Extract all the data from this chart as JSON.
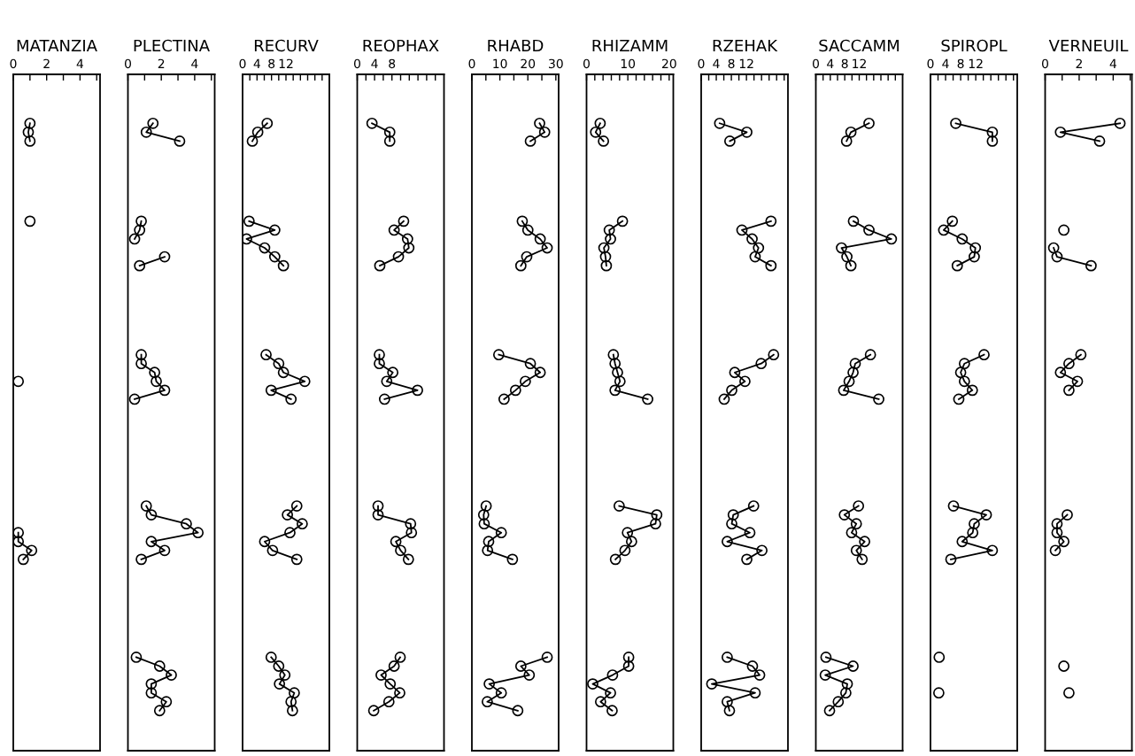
{
  "chart_data": [
    {
      "type": "line",
      "orientation": "horizontal",
      "title": "MATANZIA",
      "marker": "circle",
      "line_style": "solid",
      "tick_labels": "x",
      "xlim": [
        0,
        5.2
      ],
      "xticks": [
        0,
        {
          "value": 1,
          "label": null
        },
        2,
        {
          "value": 3,
          "label": null
        },
        4,
        {
          "value": 5,
          "label": null
        }
      ],
      "categories": [
        null,
        null,
        null,
        null,
        null,
        null,
        null,
        null,
        null,
        null,
        null,
        null,
        null,
        null,
        null,
        null,
        null,
        null,
        null,
        null,
        null,
        null,
        null,
        null,
        null,
        null,
        null,
        null,
        null,
        null,
        null,
        null,
        null,
        null,
        null,
        null,
        null,
        null,
        null,
        null,
        null,
        null,
        null,
        null,
        null,
        null,
        null,
        null,
        null,
        null,
        null,
        null,
        null,
        null,
        null,
        null,
        null,
        null,
        null,
        null,
        null,
        null,
        null,
        null,
        null,
        null,
        null,
        null,
        null,
        null,
        null,
        null,
        null,
        null,
        null,
        null
      ],
      "series": [
        {
          "color": "#000000",
          "values": [
            null,
            null,
            null,
            null,
            null,
            1.0,
            0.9,
            1.0,
            null,
            null,
            null,
            null,
            null,
            null,
            null,
            null,
            1.0,
            null,
            null,
            null,
            null,
            null,
            null,
            null,
            null,
            null,
            null,
            null,
            null,
            null,
            null,
            null,
            null,
            null,
            0.3,
            null,
            null,
            null,
            null,
            null,
            null,
            null,
            null,
            null,
            null,
            null,
            null,
            null,
            null,
            null,
            null,
            0.3,
            0.3,
            1.1,
            0.6,
            null,
            null,
            null,
            null,
            null,
            null,
            null,
            null,
            null,
            null,
            null,
            null,
            null,
            null,
            null,
            null,
            null,
            null,
            null,
            null,
            null
          ]
        }
      ]
    },
    {
      "type": "line",
      "orientation": "horizontal",
      "title": "PLECTINA",
      "marker": "circle",
      "line_style": "solid",
      "tick_labels": "x",
      "xlim": [
        0,
        5.2
      ],
      "xticks": [
        0,
        {
          "value": 1,
          "label": null
        },
        2,
        {
          "value": 3,
          "label": null
        },
        4,
        {
          "value": 5,
          "label": null
        }
      ],
      "categories": [
        null,
        null,
        null,
        null,
        null,
        null,
        null,
        null,
        null,
        null,
        null,
        null,
        null,
        null,
        null,
        null,
        null,
        null,
        null,
        null,
        null,
        null,
        null,
        null,
        null,
        null,
        null,
        null,
        null,
        null,
        null,
        null,
        null,
        null,
        null,
        null,
        null,
        null,
        null,
        null,
        null,
        null,
        null,
        null,
        null,
        null,
        null,
        null,
        null,
        null,
        null,
        null,
        null,
        null,
        null,
        null,
        null,
        null,
        null,
        null,
        null,
        null,
        null,
        null,
        null,
        null,
        null,
        null,
        null,
        null,
        null,
        null,
        null,
        null,
        null,
        null
      ],
      "series": [
        {
          "color": "#000000",
          "values": [
            null,
            null,
            null,
            null,
            null,
            1.5,
            1.1,
            3.1,
            null,
            null,
            null,
            null,
            null,
            null,
            null,
            null,
            0.8,
            0.7,
            0.4,
            null,
            2.2,
            0.7,
            null,
            null,
            null,
            null,
            null,
            null,
            null,
            null,
            null,
            0.8,
            0.8,
            1.6,
            1.7,
            2.2,
            0.4,
            null,
            null,
            null,
            null,
            null,
            null,
            null,
            null,
            null,
            null,
            null,
            1.1,
            1.4,
            3.5,
            4.2,
            1.4,
            2.2,
            0.8,
            null,
            null,
            null,
            null,
            null,
            null,
            null,
            null,
            null,
            null,
            0.5,
            1.9,
            2.6,
            1.4,
            1.4,
            2.3,
            1.9,
            null,
            null,
            null,
            null
          ]
        }
      ]
    },
    {
      "type": "line",
      "orientation": "horizontal",
      "title": "RECURV",
      "marker": "circle",
      "line_style": "solid",
      "tick_labels": "x",
      "xlim": [
        0,
        24
      ],
      "xticks": [
        0,
        {
          "value": 2,
          "label": null
        },
        4,
        {
          "value": 6,
          "label": null
        },
        8,
        {
          "value": 10,
          "label": null
        },
        12,
        {
          "value": 14,
          "label": null
        },
        {
          "value": 16,
          "label": null
        },
        {
          "value": 18,
          "label": null
        },
        {
          "value": 20,
          "label": null
        },
        {
          "value": 22,
          "label": null
        }
      ],
      "categories": [
        null,
        null,
        null,
        null,
        null,
        null,
        null,
        null,
        null,
        null,
        null,
        null,
        null,
        null,
        null,
        null,
        null,
        null,
        null,
        null,
        null,
        null,
        null,
        null,
        null,
        null,
        null,
        null,
        null,
        null,
        null,
        null,
        null,
        null,
        null,
        null,
        null,
        null,
        null,
        null,
        null,
        null,
        null,
        null,
        null,
        null,
        null,
        null,
        null,
        null,
        null,
        null,
        null,
        null,
        null,
        null,
        null,
        null,
        null,
        null,
        null,
        null,
        null,
        null,
        null,
        null,
        null,
        null,
        null,
        null,
        null,
        null,
        null,
        null,
        null,
        null
      ],
      "series": [
        {
          "color": "#000000",
          "values": [
            null,
            null,
            null,
            null,
            null,
            6.8,
            4.2,
            2.7,
            null,
            null,
            null,
            null,
            null,
            null,
            null,
            null,
            1.8,
            8.9,
            1.1,
            6.1,
            8.9,
            11.3,
            null,
            null,
            null,
            null,
            null,
            null,
            null,
            null,
            null,
            6.5,
            10.0,
            11.3,
            17.2,
            7.9,
            13.4,
            null,
            null,
            null,
            null,
            null,
            null,
            null,
            null,
            null,
            null,
            null,
            15.0,
            12.4,
            16.5,
            13.1,
            6.1,
            8.3,
            15.0,
            null,
            null,
            null,
            null,
            null,
            null,
            null,
            null,
            null,
            null,
            7.9,
            10.0,
            11.7,
            10.2,
            14.3,
            13.4,
            13.8,
            null,
            null,
            null,
            null
          ]
        }
      ]
    },
    {
      "type": "line",
      "orientation": "horizontal",
      "title": "REOPHAX",
      "marker": "circle",
      "line_style": "solid",
      "tick_labels": "x",
      "xlim": [
        0,
        20
      ],
      "xticks": [
        0,
        {
          "value": 2,
          "label": null
        },
        4,
        {
          "value": 6,
          "label": null
        },
        8,
        {
          "value": 10,
          "label": null
        },
        {
          "value": 12,
          "label": null
        },
        {
          "value": 14,
          "label": null
        },
        {
          "value": 16,
          "label": null
        },
        {
          "value": 18,
          "label": null
        }
      ],
      "categories": [
        null,
        null,
        null,
        null,
        null,
        null,
        null,
        null,
        null,
        null,
        null,
        null,
        null,
        null,
        null,
        null,
        null,
        null,
        null,
        null,
        null,
        null,
        null,
        null,
        null,
        null,
        null,
        null,
        null,
        null,
        null,
        null,
        null,
        null,
        null,
        null,
        null,
        null,
        null,
        null,
        null,
        null,
        null,
        null,
        null,
        null,
        null,
        null,
        null,
        null,
        null,
        null,
        null,
        null,
        null,
        null,
        null,
        null,
        null,
        null,
        null,
        null,
        null,
        null,
        null,
        null,
        null,
        null,
        null,
        null,
        null,
        null,
        null,
        null,
        null,
        null
      ],
      "series": [
        {
          "color": "#000000",
          "values": [
            null,
            null,
            null,
            null,
            null,
            3.4,
            7.5,
            7.5,
            null,
            null,
            null,
            null,
            null,
            null,
            null,
            null,
            10.7,
            8.5,
            11.6,
            11.9,
            9.5,
            5.2,
            null,
            null,
            null,
            null,
            null,
            null,
            null,
            null,
            null,
            5.1,
            5.1,
            8.2,
            6.8,
            13.9,
            6.3,
            null,
            null,
            null,
            null,
            null,
            null,
            null,
            null,
            null,
            null,
            null,
            4.8,
            4.8,
            12.3,
            12.5,
            8.9,
            10.0,
            11.8,
            null,
            null,
            null,
            null,
            null,
            null,
            null,
            null,
            null,
            null,
            9.9,
            8.5,
            5.5,
            7.6,
            9.8,
            7.3,
            3.8,
            null,
            null,
            null,
            null
          ]
        }
      ]
    },
    {
      "type": "line",
      "orientation": "horizontal",
      "title": "RHABD",
      "marker": "circle",
      "line_style": "solid",
      "tick_labels": "x",
      "xlim": [
        0,
        31
      ],
      "xticks": [
        0,
        {
          "value": 5,
          "label": null
        },
        10,
        {
          "value": 15,
          "label": null
        },
        20,
        {
          "value": 25,
          "label": null
        },
        30
      ],
      "categories": [
        null,
        null,
        null,
        null,
        null,
        null,
        null,
        null,
        null,
        null,
        null,
        null,
        null,
        null,
        null,
        null,
        null,
        null,
        null,
        null,
        null,
        null,
        null,
        null,
        null,
        null,
        null,
        null,
        null,
        null,
        null,
        null,
        null,
        null,
        null,
        null,
        null,
        null,
        null,
        null,
        null,
        null,
        null,
        null,
        null,
        null,
        null,
        null,
        null,
        null,
        null,
        null,
        null,
        null,
        null,
        null,
        null,
        null,
        null,
        null,
        null,
        null,
        null,
        null,
        null,
        null,
        null,
        null,
        null,
        null,
        null,
        null,
        null,
        null,
        null,
        null
      ],
      "series": [
        {
          "color": "#000000",
          "values": [
            null,
            null,
            null,
            null,
            null,
            24.2,
            26.0,
            20.9,
            null,
            null,
            null,
            null,
            null,
            null,
            null,
            null,
            18.0,
            20.0,
            24.4,
            26.9,
            19.6,
            17.5,
            null,
            null,
            null,
            null,
            null,
            null,
            null,
            null,
            null,
            9.6,
            20.9,
            24.4,
            19.1,
            15.6,
            11.5,
            null,
            null,
            null,
            null,
            null,
            null,
            null,
            null,
            null,
            null,
            null,
            5.1,
            4.2,
            4.4,
            10.5,
            6.0,
            5.6,
            14.5,
            null,
            null,
            null,
            null,
            null,
            null,
            null,
            null,
            null,
            null,
            26.9,
            17.5,
            20.5,
            6.2,
            10.5,
            5.5,
            16.4,
            null,
            null,
            null,
            null
          ]
        }
      ]
    },
    {
      "type": "line",
      "orientation": "horizontal",
      "title": "RHIZAMM",
      "marker": "circle",
      "line_style": "solid",
      "tick_labels": "x",
      "xlim": [
        0,
        21
      ],
      "xticks": [
        0,
        {
          "value": 2,
          "label": null
        },
        {
          "value": 4,
          "label": null
        },
        {
          "value": 6,
          "label": null
        },
        {
          "value": 8,
          "label": null
        },
        10,
        {
          "value": 12,
          "label": null
        },
        {
          "value": 14,
          "label": null
        },
        {
          "value": 16,
          "label": null
        },
        {
          "value": 18,
          "label": null
        },
        20
      ],
      "categories": [
        null,
        null,
        null,
        null,
        null,
        null,
        null,
        null,
        null,
        null,
        null,
        null,
        null,
        null,
        null,
        null,
        null,
        null,
        null,
        null,
        null,
        null,
        null,
        null,
        null,
        null,
        null,
        null,
        null,
        null,
        null,
        null,
        null,
        null,
        null,
        null,
        null,
        null,
        null,
        null,
        null,
        null,
        null,
        null,
        null,
        null,
        null,
        null,
        null,
        null,
        null,
        null,
        null,
        null,
        null,
        null,
        null,
        null,
        null,
        null,
        null,
        null,
        null,
        null,
        null,
        null,
        null,
        null,
        null,
        null,
        null,
        null,
        null,
        null,
        null,
        null
      ],
      "series": [
        {
          "color": "#000000",
          "values": [
            null,
            null,
            null,
            null,
            null,
            3.3,
            2.2,
            4.1,
            null,
            null,
            null,
            null,
            null,
            null,
            null,
            null,
            8.7,
            5.5,
            5.8,
            4.2,
            4.6,
            4.8,
            null,
            null,
            null,
            null,
            null,
            null,
            null,
            null,
            null,
            6.5,
            6.9,
            7.5,
            8.1,
            6.9,
            14.8,
            null,
            null,
            null,
            null,
            null,
            null,
            null,
            null,
            null,
            null,
            null,
            7.9,
            17.0,
            16.7,
            9.9,
            10.9,
            9.3,
            7.0,
            null,
            null,
            null,
            null,
            null,
            null,
            null,
            null,
            null,
            null,
            10.2,
            10.2,
            6.3,
            1.5,
            5.8,
            3.4,
            6.2,
            null,
            null,
            null,
            null
          ]
        }
      ]
    },
    {
      "type": "line",
      "orientation": "horizontal",
      "title": "RZEHAK",
      "marker": "circle",
      "line_style": "solid",
      "tick_labels": "x",
      "xlim": [
        0,
        23
      ],
      "xticks": [
        0,
        {
          "value": 2,
          "label": null
        },
        4,
        {
          "value": 6,
          "label": null
        },
        8,
        {
          "value": 10,
          "label": null
        },
        12,
        {
          "value": 14,
          "label": null
        },
        {
          "value": 16,
          "label": null
        },
        {
          "value": 18,
          "label": null
        },
        {
          "value": 20,
          "label": null
        },
        {
          "value": 22,
          "label": null
        }
      ],
      "categories": [
        null,
        null,
        null,
        null,
        null,
        null,
        null,
        null,
        null,
        null,
        null,
        null,
        null,
        null,
        null,
        null,
        null,
        null,
        null,
        null,
        null,
        null,
        null,
        null,
        null,
        null,
        null,
        null,
        null,
        null,
        null,
        null,
        null,
        null,
        null,
        null,
        null,
        null,
        null,
        null,
        null,
        null,
        null,
        null,
        null,
        null,
        null,
        null,
        null,
        null,
        null,
        null,
        null,
        null,
        null,
        null,
        null,
        null,
        null,
        null,
        null,
        null,
        null,
        null,
        null,
        null,
        null,
        null,
        null,
        null,
        null,
        null,
        null,
        null,
        null,
        null
      ],
      "series": [
        {
          "color": "#000000",
          "values": [
            null,
            null,
            null,
            null,
            null,
            4.9,
            12.1,
            7.6,
            null,
            null,
            null,
            null,
            null,
            null,
            null,
            null,
            18.5,
            10.8,
            13.5,
            15.2,
            14.3,
            18.5,
            null,
            null,
            null,
            null,
            null,
            null,
            null,
            null,
            null,
            19.2,
            15.9,
            8.9,
            11.6,
            8.1,
            6.1,
            null,
            null,
            null,
            null,
            null,
            null,
            null,
            null,
            null,
            null,
            null,
            13.9,
            8.5,
            8.1,
            12.9,
            6.9,
            16.1,
            12.1,
            null,
            null,
            null,
            null,
            null,
            null,
            null,
            null,
            null,
            null,
            6.9,
            13.6,
            15.5,
            2.8,
            14.3,
            6.9,
            7.5,
            null,
            null,
            null,
            null
          ]
        }
      ]
    },
    {
      "type": "line",
      "orientation": "horizontal",
      "title": "SACCAMM",
      "marker": "circle",
      "line_style": "solid",
      "tick_labels": "x",
      "xlim": [
        0,
        24
      ],
      "xticks": [
        0,
        {
          "value": 2,
          "label": null
        },
        4,
        {
          "value": 6,
          "label": null
        },
        8,
        {
          "value": 10,
          "label": null
        },
        12,
        {
          "value": 14,
          "label": null
        },
        {
          "value": 16,
          "label": null
        },
        {
          "value": 18,
          "label": null
        },
        {
          "value": 20,
          "label": null
        },
        {
          "value": 22,
          "label": null
        }
      ],
      "categories": [
        null,
        null,
        null,
        null,
        null,
        null,
        null,
        null,
        null,
        null,
        null,
        null,
        null,
        null,
        null,
        null,
        null,
        null,
        null,
        null,
        null,
        null,
        null,
        null,
        null,
        null,
        null,
        null,
        null,
        null,
        null,
        null,
        null,
        null,
        null,
        null,
        null,
        null,
        null,
        null,
        null,
        null,
        null,
        null,
        null,
        null,
        null,
        null,
        null,
        null,
        null,
        null,
        null,
        null,
        null,
        null,
        null,
        null,
        null,
        null,
        null,
        null,
        null,
        null,
        null,
        null,
        null,
        null,
        null,
        null,
        null,
        null,
        null,
        null,
        null,
        null
      ],
      "series": [
        {
          "color": "#000000",
          "values": [
            null,
            null,
            null,
            null,
            null,
            14.7,
            9.7,
            8.5,
            null,
            null,
            null,
            null,
            null,
            null,
            null,
            null,
            10.4,
            14.7,
            20.9,
            7.1,
            8.6,
            9.7,
            null,
            null,
            null,
            null,
            null,
            null,
            null,
            null,
            null,
            15.1,
            10.9,
            10.3,
            9.2,
            7.7,
            17.4,
            null,
            null,
            null,
            null,
            null,
            null,
            null,
            null,
            null,
            null,
            null,
            11.8,
            7.9,
            11.2,
            9.9,
            13.5,
            11.2,
            12.8,
            null,
            null,
            null,
            null,
            null,
            null,
            null,
            null,
            null,
            null,
            2.8,
            10.3,
            2.6,
            8.7,
            8.3,
            6.2,
            3.8,
            null,
            null,
            null,
            null
          ]
        }
      ]
    },
    {
      "type": "line",
      "orientation": "horizontal",
      "title": "SPIROPL",
      "marker": "circle",
      "line_style": "solid",
      "tick_labels": "x",
      "xlim": [
        0,
        23
      ],
      "xticks": [
        0,
        {
          "value": 2,
          "label": null
        },
        4,
        {
          "value": 6,
          "label": null
        },
        8,
        {
          "value": 10,
          "label": null
        },
        12,
        {
          "value": 14,
          "label": null
        },
        {
          "value": 16,
          "label": null
        },
        {
          "value": 18,
          "label": null
        },
        {
          "value": 20,
          "label": null
        },
        {
          "value": 22,
          "label": null
        }
      ],
      "categories": [
        null,
        null,
        null,
        null,
        null,
        null,
        null,
        null,
        null,
        null,
        null,
        null,
        null,
        null,
        null,
        null,
        null,
        null,
        null,
        null,
        null,
        null,
        null,
        null,
        null,
        null,
        null,
        null,
        null,
        null,
        null,
        null,
        null,
        null,
        null,
        null,
        null,
        null,
        null,
        null,
        null,
        null,
        null,
        null,
        null,
        null,
        null,
        null,
        null,
        null,
        null,
        null,
        null,
        null,
        null,
        null,
        null,
        null,
        null,
        null,
        null,
        null,
        null,
        null,
        null,
        null,
        null,
        null,
        null,
        null,
        null,
        null,
        null,
        null,
        null,
        null
      ],
      "series": [
        {
          "color": "#000000",
          "values": [
            null,
            null,
            null,
            null,
            null,
            6.7,
            16.4,
            16.4,
            null,
            null,
            null,
            null,
            null,
            null,
            null,
            null,
            5.8,
            3.5,
            8.4,
            11.9,
            11.6,
            7.1,
            null,
            null,
            null,
            null,
            null,
            null,
            null,
            null,
            null,
            14.2,
            9.0,
            8.0,
            9.0,
            11.1,
            7.5,
            null,
            null,
            null,
            null,
            null,
            null,
            null,
            null,
            null,
            null,
            null,
            6.1,
            14.8,
            11.6,
            11.2,
            8.4,
            16.4,
            5.4,
            null,
            null,
            null,
            null,
            null,
            null,
            null,
            null,
            null,
            null,
            2.3,
            null,
            null,
            null,
            2.2,
            null,
            null,
            null,
            null,
            null,
            null
          ]
        }
      ]
    },
    {
      "type": "line",
      "orientation": "horizontal",
      "title": "VERNEUIL",
      "marker": "circle",
      "line_style": "solid",
      "tick_labels": "x",
      "xlim": [
        0,
        5.1
      ],
      "xticks": [
        0,
        {
          "value": 1,
          "label": null
        },
        2,
        {
          "value": 3,
          "label": null
        },
        4,
        {
          "value": 5,
          "label": null
        }
      ],
      "categories": [
        null,
        null,
        null,
        null,
        null,
        null,
        null,
        null,
        null,
        null,
        null,
        null,
        null,
        null,
        null,
        null,
        null,
        null,
        null,
        null,
        null,
        null,
        null,
        null,
        null,
        null,
        null,
        null,
        null,
        null,
        null,
        null,
        null,
        null,
        null,
        null,
        null,
        null,
        null,
        null,
        null,
        null,
        null,
        null,
        null,
        null,
        null,
        null,
        null,
        null,
        null,
        null,
        null,
        null,
        null,
        null,
        null,
        null,
        null,
        null,
        null,
        null,
        null,
        null,
        null,
        null,
        null,
        null,
        null,
        null,
        null,
        null,
        null,
        null,
        null,
        null
      ],
      "series": [
        {
          "color": "#000000",
          "values": [
            null,
            null,
            null,
            null,
            null,
            4.4,
            0.9,
            3.2,
            null,
            null,
            null,
            null,
            null,
            null,
            null,
            null,
            null,
            1.1,
            null,
            0.5,
            0.7,
            2.7,
            null,
            null,
            null,
            null,
            null,
            null,
            null,
            null,
            null,
            2.1,
            1.4,
            0.9,
            1.9,
            1.4,
            null,
            null,
            null,
            null,
            null,
            null,
            null,
            null,
            null,
            null,
            null,
            null,
            null,
            1.3,
            0.7,
            0.7,
            1.1,
            0.6,
            null,
            null,
            null,
            null,
            null,
            null,
            null,
            null,
            null,
            null,
            null,
            null,
            1.1,
            null,
            null,
            1.4,
            null,
            null,
            null,
            null,
            null,
            null
          ]
        }
      ]
    }
  ]
}
